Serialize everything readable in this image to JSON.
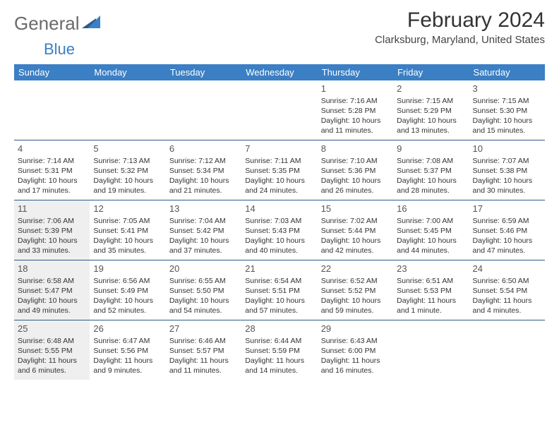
{
  "logo": {
    "text1": "General",
    "text2": "Blue"
  },
  "title": "February 2024",
  "location": "Clarksburg, Maryland, United States",
  "colors": {
    "header_bg": "#3b7fc4",
    "header_text": "#ffffff",
    "row_border": "#2a5a8a",
    "shaded_bg": "#efefef",
    "text": "#333333",
    "logo_grey": "#6a6a6a"
  },
  "day_names": [
    "Sunday",
    "Monday",
    "Tuesday",
    "Wednesday",
    "Thursday",
    "Friday",
    "Saturday"
  ],
  "weeks": [
    [
      null,
      null,
      null,
      null,
      {
        "n": "1",
        "sr": "7:16 AM",
        "ss": "5:28 PM",
        "dl": "10 hours and 11 minutes."
      },
      {
        "n": "2",
        "sr": "7:15 AM",
        "ss": "5:29 PM",
        "dl": "10 hours and 13 minutes."
      },
      {
        "n": "3",
        "sr": "7:15 AM",
        "ss": "5:30 PM",
        "dl": "10 hours and 15 minutes."
      }
    ],
    [
      {
        "n": "4",
        "sr": "7:14 AM",
        "ss": "5:31 PM",
        "dl": "10 hours and 17 minutes."
      },
      {
        "n": "5",
        "sr": "7:13 AM",
        "ss": "5:32 PM",
        "dl": "10 hours and 19 minutes."
      },
      {
        "n": "6",
        "sr": "7:12 AM",
        "ss": "5:34 PM",
        "dl": "10 hours and 21 minutes."
      },
      {
        "n": "7",
        "sr": "7:11 AM",
        "ss": "5:35 PM",
        "dl": "10 hours and 24 minutes."
      },
      {
        "n": "8",
        "sr": "7:10 AM",
        "ss": "5:36 PM",
        "dl": "10 hours and 26 minutes."
      },
      {
        "n": "9",
        "sr": "7:08 AM",
        "ss": "5:37 PM",
        "dl": "10 hours and 28 minutes."
      },
      {
        "n": "10",
        "sr": "7:07 AM",
        "ss": "5:38 PM",
        "dl": "10 hours and 30 minutes."
      }
    ],
    [
      {
        "n": "11",
        "sr": "7:06 AM",
        "ss": "5:39 PM",
        "dl": "10 hours and 33 minutes.",
        "sh": true
      },
      {
        "n": "12",
        "sr": "7:05 AM",
        "ss": "5:41 PM",
        "dl": "10 hours and 35 minutes."
      },
      {
        "n": "13",
        "sr": "7:04 AM",
        "ss": "5:42 PM",
        "dl": "10 hours and 37 minutes."
      },
      {
        "n": "14",
        "sr": "7:03 AM",
        "ss": "5:43 PM",
        "dl": "10 hours and 40 minutes."
      },
      {
        "n": "15",
        "sr": "7:02 AM",
        "ss": "5:44 PM",
        "dl": "10 hours and 42 minutes."
      },
      {
        "n": "16",
        "sr": "7:00 AM",
        "ss": "5:45 PM",
        "dl": "10 hours and 44 minutes."
      },
      {
        "n": "17",
        "sr": "6:59 AM",
        "ss": "5:46 PM",
        "dl": "10 hours and 47 minutes."
      }
    ],
    [
      {
        "n": "18",
        "sr": "6:58 AM",
        "ss": "5:47 PM",
        "dl": "10 hours and 49 minutes.",
        "sh": true
      },
      {
        "n": "19",
        "sr": "6:56 AM",
        "ss": "5:49 PM",
        "dl": "10 hours and 52 minutes."
      },
      {
        "n": "20",
        "sr": "6:55 AM",
        "ss": "5:50 PM",
        "dl": "10 hours and 54 minutes."
      },
      {
        "n": "21",
        "sr": "6:54 AM",
        "ss": "5:51 PM",
        "dl": "10 hours and 57 minutes."
      },
      {
        "n": "22",
        "sr": "6:52 AM",
        "ss": "5:52 PM",
        "dl": "10 hours and 59 minutes."
      },
      {
        "n": "23",
        "sr": "6:51 AM",
        "ss": "5:53 PM",
        "dl": "11 hours and 1 minute."
      },
      {
        "n": "24",
        "sr": "6:50 AM",
        "ss": "5:54 PM",
        "dl": "11 hours and 4 minutes."
      }
    ],
    [
      {
        "n": "25",
        "sr": "6:48 AM",
        "ss": "5:55 PM",
        "dl": "11 hours and 6 minutes.",
        "sh": true
      },
      {
        "n": "26",
        "sr": "6:47 AM",
        "ss": "5:56 PM",
        "dl": "11 hours and 9 minutes."
      },
      {
        "n": "27",
        "sr": "6:46 AM",
        "ss": "5:57 PM",
        "dl": "11 hours and 11 minutes."
      },
      {
        "n": "28",
        "sr": "6:44 AM",
        "ss": "5:59 PM",
        "dl": "11 hours and 14 minutes."
      },
      {
        "n": "29",
        "sr": "6:43 AM",
        "ss": "6:00 PM",
        "dl": "11 hours and 16 minutes."
      },
      null,
      null
    ]
  ]
}
